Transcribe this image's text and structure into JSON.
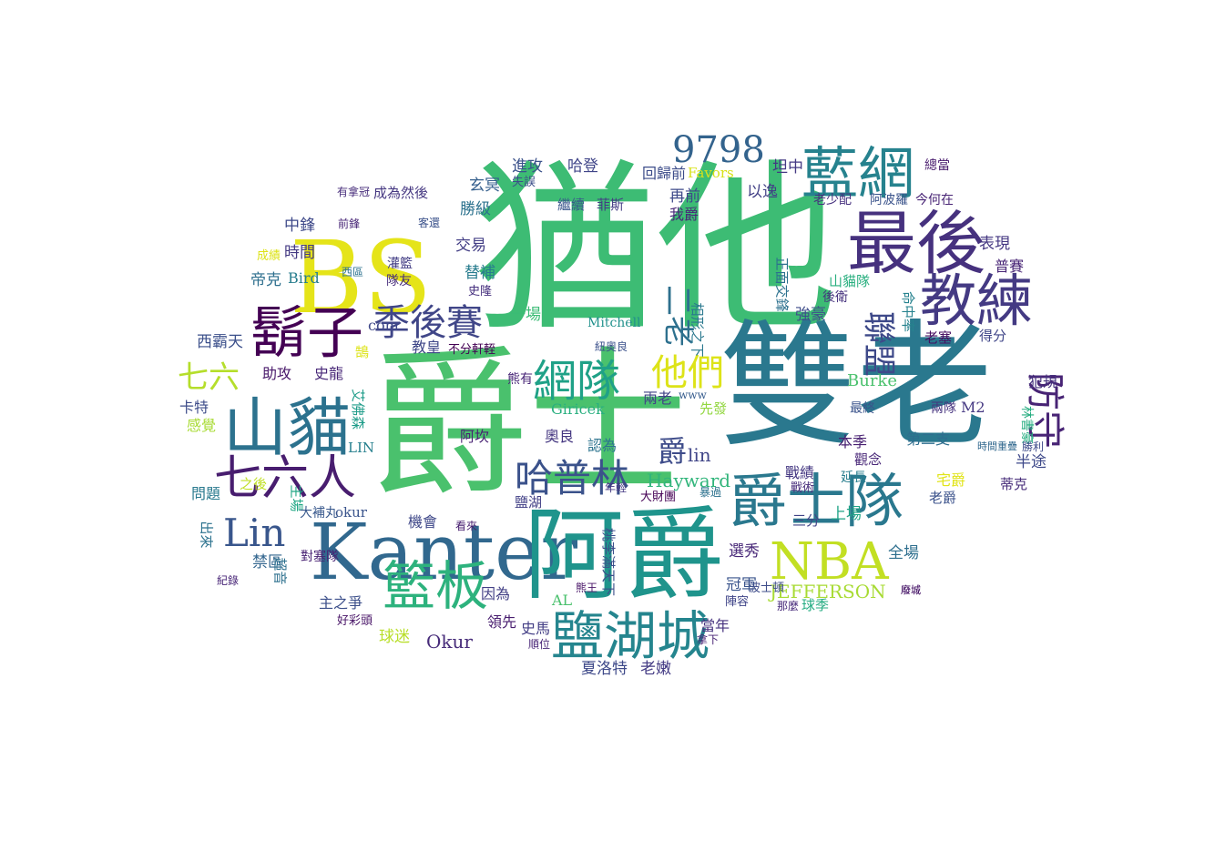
{
  "words": [
    {
      "text": "猶他",
      "color": "#3dbc74"
    },
    {
      "text": "爵士",
      "color": "#4ac16d"
    },
    {
      "text": "雙老",
      "color": "#2a788e"
    },
    {
      "text": "BS",
      "color": "#e5e419"
    },
    {
      "text": "Kanter",
      "color": "#31688e"
    },
    {
      "text": "阿爵",
      "color": "#1f948c"
    },
    {
      "text": "藍網",
      "color": "#26828e"
    },
    {
      "text": "最後",
      "color": "#46317e"
    },
    {
      "text": "教練",
      "color": "#443a83"
    },
    {
      "text": "爵士隊",
      "color": "#2a788e"
    },
    {
      "text": "鬍子",
      "color": "#440154"
    },
    {
      "text": "山貓",
      "color": "#2c728e"
    },
    {
      "text": "NBA",
      "color": "#c2df23"
    },
    {
      "text": "鹽湖城",
      "color": "#25858e"
    },
    {
      "text": "籃板",
      "color": "#2db27d"
    },
    {
      "text": "七六人",
      "color": "#481d6f"
    },
    {
      "text": "哈普林",
      "color": "#3b528b"
    },
    {
      "text": "季後賽",
      "color": "#404688"
    },
    {
      "text": "網隊",
      "color": "#1fa187"
    },
    {
      "text": "他們",
      "color": "#dde318"
    },
    {
      "text": "9798",
      "color": "#33638d"
    },
    {
      "text": "Lin",
      "color": "#39568c"
    },
    {
      "text": "防守",
      "color": "#482475"
    },
    {
      "text": "聯盟",
      "color": "#3e4989"
    },
    {
      "text": "七六",
      "color": "#b5de2b"
    },
    {
      "text": "二老",
      "color": "#2d708e"
    },
    {
      "text": "爵",
      "color": "#3e4c8a"
    },
    {
      "text": "lin",
      "color": "#404588"
    },
    {
      "text": "JEFFERSON",
      "color": "#a8db34"
    },
    {
      "text": "Okur",
      "color": "#472c7a"
    },
    {
      "text": "Hayward",
      "color": "#31b57b"
    },
    {
      "text": "Burke",
      "color": "#4ac16d"
    },
    {
      "text": "Giricek",
      "color": "#29af7f"
    },
    {
      "text": "Mitchell",
      "color": "#21918c"
    },
    {
      "text": "Favors",
      "color": "#d8e219"
    },
    {
      "text": "Bird",
      "color": "#287d8e"
    },
    {
      "text": "LIN",
      "color": "#27808e"
    },
    {
      "text": "okur",
      "color": "#3a548c"
    },
    {
      "text": "com",
      "color": "#3f4889"
    },
    {
      "text": "www",
      "color": "#365c8d"
    },
    {
      "text": "M2",
      "color": "#453882"
    },
    {
      "text": "AL",
      "color": "#4ac16d"
    },
    {
      "text": "進攻",
      "color": "#3b528b"
    },
    {
      "text": "哈登",
      "color": "#404588"
    },
    {
      "text": "回歸前",
      "color": "#3d4d8a"
    },
    {
      "text": "坦中",
      "color": "#443983"
    },
    {
      "text": "總當",
      "color": "#481b6d"
    },
    {
      "text": "成為然後",
      "color": "#453781"
    },
    {
      "text": "有拿冠",
      "color": "#472d7b"
    },
    {
      "text": "玄冥",
      "color": "#355f8d"
    },
    {
      "text": "失誤",
      "color": "#3c4f8a"
    },
    {
      "text": "繼續",
      "color": "#39568c"
    },
    {
      "text": "菲斯",
      "color": "#433d84"
    },
    {
      "text": "再前",
      "color": "#3e4a89"
    },
    {
      "text": "我爵",
      "color": "#482878"
    },
    {
      "text": "以逸",
      "color": "#424086"
    },
    {
      "text": "老少配",
      "color": "#46307e"
    },
    {
      "text": "阿波羅",
      "color": "#3a538b"
    },
    {
      "text": "今何在",
      "color": "#482475"
    },
    {
      "text": "勝級",
      "color": "#2c728e"
    },
    {
      "text": "中鋒",
      "color": "#3e4989"
    },
    {
      "text": "時間",
      "color": "#443a83"
    },
    {
      "text": "帝克",
      "color": "#2e6f8e"
    },
    {
      "text": "交易",
      "color": "#433e85"
    },
    {
      "text": "替補",
      "color": "#287c8e"
    },
    {
      "text": "表現",
      "color": "#453882"
    },
    {
      "text": "普賽",
      "color": "#482576"
    },
    {
      "text": "山貓隊",
      "color": "#29af7f"
    },
    {
      "text": "後衛",
      "color": "#46327e"
    },
    {
      "text": "正面交鋒",
      "color": "#2c718e"
    },
    {
      "text": "西霸天",
      "color": "#3c508b"
    },
    {
      "text": "一場",
      "color": "#3bbb75"
    },
    {
      "text": "強豪",
      "color": "#3e4c8a"
    },
    {
      "text": "命中率",
      "color": "#26828e"
    },
    {
      "text": "老塞",
      "color": "#470e61"
    },
    {
      "text": "得分",
      "color": "#404688"
    },
    {
      "text": "助攻",
      "color": "#48186a"
    },
    {
      "text": "史龍",
      "color": "#482878"
    },
    {
      "text": "教皇",
      "color": "#3f4788"
    },
    {
      "text": "不分軒輊",
      "color": "#440154"
    },
    {
      "text": "熊有",
      "color": "#482677"
    },
    {
      "text": "兩老",
      "color": "#414487"
    },
    {
      "text": "犯規",
      "color": "#46327e"
    },
    {
      "text": "卡特",
      "color": "#3e4c8a"
    },
    {
      "text": "感覺",
      "color": "#a8db34"
    },
    {
      "text": "艾佛森",
      "color": "#1e9c89"
    },
    {
      "text": "阿坎",
      "color": "#482173"
    },
    {
      "text": "奧良",
      "color": "#453781"
    },
    {
      "text": "認為",
      "color": "#2c738e"
    },
    {
      "text": "先發",
      "color": "#93d741"
    },
    {
      "text": "最終",
      "color": "#3a538b"
    },
    {
      "text": "兩隊",
      "color": "#46337f"
    },
    {
      "text": "林書豪",
      "color": "#27ad81"
    },
    {
      "text": "本季",
      "color": "#482071"
    },
    {
      "text": "第二支",
      "color": "#2e6e8e"
    },
    {
      "text": "半途",
      "color": "#3e4989"
    },
    {
      "text": "觀念",
      "color": "#482677"
    },
    {
      "text": "時間重疊",
      "color": "#31688e"
    },
    {
      "text": "勝利",
      "color": "#3e4c8a"
    },
    {
      "text": "問題",
      "color": "#29798e"
    },
    {
      "text": "之後",
      "color": "#c0df25"
    },
    {
      "text": "鹽湖",
      "color": "#424086"
    },
    {
      "text": "大財團",
      "color": "#440154"
    },
    {
      "text": "戰績",
      "color": "#453882"
    },
    {
      "text": "延長",
      "color": "#287d8e"
    },
    {
      "text": "戰術",
      "color": "#472d7b"
    },
    {
      "text": "宅爵",
      "color": "#e1e418"
    },
    {
      "text": "蒂克",
      "color": "#472c7a"
    },
    {
      "text": "老爵",
      "color": "#3b528b"
    },
    {
      "text": "暴過",
      "color": "#2c718e"
    },
    {
      "text": "三分",
      "color": "#414487"
    },
    {
      "text": "上場",
      "color": "#20a386"
    },
    {
      "text": "主場",
      "color": "#22a785"
    },
    {
      "text": "出來",
      "color": "#2c728e"
    },
    {
      "text": "大補丸",
      "color": "#38588c"
    },
    {
      "text": "機會",
      "color": "#3f4889"
    },
    {
      "text": "看來",
      "color": "#482071"
    },
    {
      "text": "全場",
      "color": "#2e6f8e"
    },
    {
      "text": "選秀",
      "color": "#482878"
    },
    {
      "text": "冠軍",
      "color": "#3a548c"
    },
    {
      "text": "禁區",
      "color": "#32658e"
    },
    {
      "text": "對塞隊",
      "color": "#482173"
    },
    {
      "text": "主之爭",
      "color": "#3c4f8a"
    },
    {
      "text": "好彩頭",
      "color": "#481467"
    },
    {
      "text": "因為",
      "color": "#423f85"
    },
    {
      "text": "領先",
      "color": "#481d6f"
    },
    {
      "text": "球季",
      "color": "#25ac82"
    },
    {
      "text": "陣容",
      "color": "#404588"
    },
    {
      "text": "那麼",
      "color": "#472a7a"
    },
    {
      "text": "廢城",
      "color": "#481769"
    },
    {
      "text": "當年",
      "color": "#46327e"
    },
    {
      "text": "球迷",
      "color": "#b8de29"
    },
    {
      "text": "史馬",
      "color": "#433e85"
    },
    {
      "text": "順位",
      "color": "#482576"
    },
    {
      "text": "夏洛特",
      "color": "#3e4989"
    },
    {
      "text": "老嫩",
      "color": "#443b84"
    },
    {
      "text": "拿下",
      "color": "#482374"
    },
    {
      "text": "熊王",
      "color": "#481467"
    },
    {
      "text": "桃李滿天下",
      "color": "#3c4f8a"
    },
    {
      "text": "波士頓",
      "color": "#3e4c8a"
    },
    {
      "text": "相形之下",
      "color": "#2a788e"
    },
    {
      "text": "紐奧良",
      "color": "#3b518b"
    },
    {
      "text": "年輕",
      "color": "#453882"
    },
    {
      "text": "隊友",
      "color": "#472c7a"
    },
    {
      "text": "灌籃",
      "color": "#433e85"
    },
    {
      "text": "史隆",
      "color": "#46307e"
    },
    {
      "text": "客還",
      "color": "#3b528b"
    },
    {
      "text": "前鋒",
      "color": "#482677"
    },
    {
      "text": "西區",
      "color": "#2c728e"
    },
    {
      "text": "成績",
      "color": "#dde318"
    },
    {
      "text": "紀錄",
      "color": "#482677"
    },
    {
      "text": "超音",
      "color": "#2d708e"
    },
    {
      "text": "鵠",
      "color": "#dde318"
    },
    {
      "text": "廢城",
      "color": "#481769"
    }
  ]
}
